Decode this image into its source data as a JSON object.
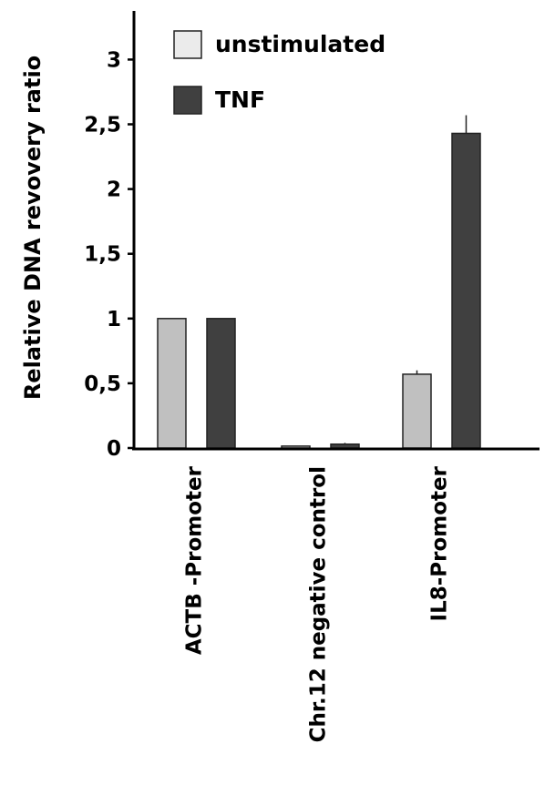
{
  "chart_data": {
    "type": "bar",
    "ylabel": "Relative DNA revovery ratio",
    "xlabel": "",
    "ylim": [
      0,
      3.2
    ],
    "yticks": [
      0,
      0.5,
      1,
      1.5,
      2,
      2.5,
      3
    ],
    "ytick_labels": [
      "0",
      "0,5",
      "1",
      "1,5",
      "2",
      "2,5",
      "3"
    ],
    "categories": [
      "ACTB -Promoter",
      "Chr.12 negative control",
      "IL8-Promoter"
    ],
    "series": [
      {
        "name": "unstimulated",
        "color": "#c0c0c0",
        "legend_color": "#ebebeb",
        "values": [
          1.0,
          0.015,
          0.57
        ],
        "error": [
          0,
          0,
          0.03
        ]
      },
      {
        "name": "TNF",
        "color": "#404040",
        "legend_color": "#404040",
        "values": [
          1.0,
          0.03,
          2.43
        ],
        "error": [
          0,
          0.01,
          0.14
        ]
      }
    ],
    "legend_position": "top",
    "grid": false
  }
}
